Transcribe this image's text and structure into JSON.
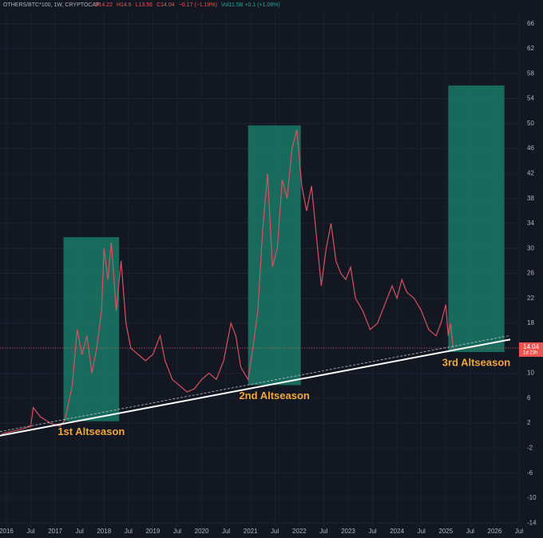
{
  "chart_data": {
    "type": "line",
    "symbol": "OTHERS/BTC*100, 1W, CRYPTOCAP",
    "ohlc": [
      "O14.22",
      "H14.6",
      "L13.56",
      "C14.04",
      "−0.17 (−1.19%)"
    ],
    "volume": "Vol11.5B +0.1 (+1.08%)",
    "x": [
      2015.9,
      2016.3,
      2016.5,
      2016.55,
      2016.7,
      2016.9,
      2017.1,
      2017.2,
      2017.35,
      2017.45,
      2017.55,
      2017.65,
      2017.75,
      2017.85,
      2017.95,
      2018.0,
      2018.08,
      2018.15,
      2018.25,
      2018.35,
      2018.45,
      2018.55,
      2018.7,
      2018.85,
      2019.0,
      2019.15,
      2019.25,
      2019.4,
      2019.55,
      2019.7,
      2019.85,
      2020.0,
      2020.15,
      2020.3,
      2020.45,
      2020.6,
      2020.7,
      2020.8,
      2020.95,
      2021.05,
      2021.15,
      2021.25,
      2021.35,
      2021.45,
      2021.55,
      2021.65,
      2021.75,
      2021.85,
      2021.95,
      2022.05,
      2022.15,
      2022.25,
      2022.35,
      2022.45,
      2022.55,
      2022.65,
      2022.75,
      2022.85,
      2022.95,
      2023.05,
      2023.15,
      2023.3,
      2023.45,
      2023.6,
      2023.75,
      2023.9,
      2024.0,
      2024.1,
      2024.2,
      2024.35,
      2024.5,
      2024.65,
      2024.8,
      2024.9,
      2025.0,
      2025.05,
      2025.1,
      2025.15
    ],
    "series": [
      {
        "color": "#d9515f",
        "values": [
          0.3,
          1,
          1.5,
          4.5,
          3,
          2,
          1.5,
          2.5,
          8,
          17,
          13,
          16,
          10,
          14,
          20,
          30,
          25,
          31,
          20,
          28,
          18,
          14,
          13,
          12,
          13,
          16,
          12,
          9,
          8,
          7,
          7.5,
          9,
          10,
          9,
          12,
          18,
          16,
          11,
          9,
          14,
          20,
          33,
          42,
          27,
          30,
          41,
          38,
          46,
          49,
          40,
          36,
          40,
          32,
          24,
          30,
          34,
          28,
          26,
          25,
          27,
          22,
          20,
          17,
          18,
          21,
          24,
          22,
          25,
          23,
          22,
          20,
          17,
          16,
          18,
          21,
          16,
          18,
          14
        ]
      }
    ],
    "xlim": [
      2015.87,
      2026.5
    ],
    "ylim": [
      -16.4,
      69.8
    ],
    "yticks": [
      66,
      62,
      58,
      54,
      50,
      46,
      42,
      38,
      34,
      30,
      26,
      22,
      18,
      14,
      10,
      6,
      2,
      -2,
      -6,
      -10,
      -14
    ],
    "xticks": [
      {
        "value": 2016,
        "label": "2016"
      },
      {
        "value": 2016.5,
        "label": "Jul"
      },
      {
        "value": 2017,
        "label": "2017"
      },
      {
        "value": 2017.5,
        "label": "Jul"
      },
      {
        "value": 2018,
        "label": "2018"
      },
      {
        "value": 2018.5,
        "label": "Jul"
      },
      {
        "value": 2019,
        "label": "2019"
      },
      {
        "value": 2019.5,
        "label": "Jul"
      },
      {
        "value": 2020,
        "label": "2020"
      },
      {
        "value": 2020.5,
        "label": "Jul"
      },
      {
        "value": 2021,
        "label": "2021"
      },
      {
        "value": 2021.5,
        "label": "Jul"
      },
      {
        "value": 2022,
        "label": "2022"
      },
      {
        "value": 2022.5,
        "label": "Jul"
      },
      {
        "value": 2023,
        "label": "2023"
      },
      {
        "value": 2023.5,
        "label": "Jul"
      },
      {
        "value": 2024,
        "label": "2024"
      },
      {
        "value": 2024.5,
        "label": "Jul"
      },
      {
        "value": 2025,
        "label": "2025"
      },
      {
        "value": 2025.5,
        "label": "Jul"
      },
      {
        "value": 2026,
        "label": "2026"
      },
      {
        "value": 2026.5,
        "label": "Jul"
      }
    ],
    "zones": [
      {
        "label": "1st Altseason",
        "x": [
          2017.17,
          2018.31
        ],
        "y": [
          2.3,
          31.8
        ]
      },
      {
        "label": "2nd Altseason",
        "x": [
          2020.95,
          2022.03
        ],
        "y": [
          8.1,
          49.7
        ]
      },
      {
        "label": "3rd Altseason",
        "x": [
          2025.05,
          2026.2
        ],
        "y": [
          13.4,
          56.1
        ]
      }
    ],
    "zone_color": "#1a7a66",
    "trendline": {
      "x": [
        2015.87,
        2026.32
      ],
      "y": [
        0,
        15.4
      ]
    },
    "price_tag": {
      "value": 14.04,
      "countdown": "1d 23h"
    },
    "grid": true
  }
}
